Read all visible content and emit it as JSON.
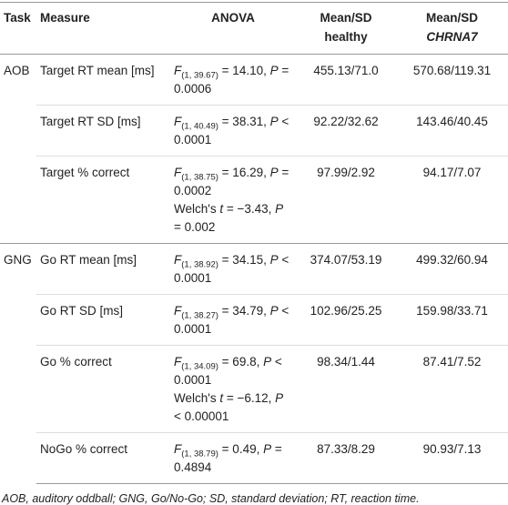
{
  "table": {
    "header": [
      [
        [
          "Task"
        ]
      ],
      [
        [
          "Measure"
        ]
      ],
      [
        [
          "ANOVA"
        ]
      ],
      [
        [
          "Mean/SD"
        ],
        [
          "healthy"
        ]
      ],
      [
        [
          "Mean/SD"
        ],
        [
          {
            "text": "CHRNA7",
            "style": "italic"
          }
        ]
      ]
    ],
    "groups": [
      {
        "task": "AOB",
        "rows": [
          {
            "measure": "Target RT mean [ms]",
            "anova": [
              [
                {
                  "text": "F",
                  "style": "italic"
                },
                {
                  "text": "(1, 39.67)",
                  "style": "sub"
                },
                " = 14.10, ",
                {
                  "text": "P",
                  "style": "italic"
                },
                " = 0.0006"
              ]
            ],
            "healthy": "455.13/71.0",
            "chrna7": "570.68/119.31"
          },
          {
            "measure": "Target RT SD [ms]",
            "anova": [
              [
                {
                  "text": "F",
                  "style": "italic"
                },
                {
                  "text": "(1, 40.49)",
                  "style": "sub"
                },
                " = 38.31, ",
                {
                  "text": "P",
                  "style": "italic"
                },
                " < 0.0001"
              ]
            ],
            "healthy": "92.22/32.62",
            "chrna7": "143.46/40.45"
          },
          {
            "measure": "Target % correct",
            "anova": [
              [
                {
                  "text": "F",
                  "style": "italic"
                },
                {
                  "text": "(1, 38.75)",
                  "style": "sub"
                },
                " = 16.29, ",
                {
                  "text": "P",
                  "style": "italic"
                },
                " = 0.0002"
              ],
              [
                "Welch's ",
                {
                  "text": "t",
                  "style": "italic"
                },
                " = −3.43, ",
                {
                  "text": "P",
                  "style": "italic"
                },
                " = 0.002"
              ]
            ],
            "healthy": "97.99/2.92",
            "chrna7": "94.17/7.07"
          }
        ]
      },
      {
        "task": "GNG",
        "rows": [
          {
            "measure": "Go RT mean [ms]",
            "anova": [
              [
                {
                  "text": "F",
                  "style": "italic"
                },
                {
                  "text": "(1, 38.92)",
                  "style": "sub"
                },
                " = 34.15, ",
                {
                  "text": "P",
                  "style": "italic"
                },
                " < 0.0001"
              ]
            ],
            "healthy": "374.07/53.19",
            "chrna7": "499.32/60.94"
          },
          {
            "measure": "Go RT SD [ms]",
            "anova": [
              [
                {
                  "text": "F",
                  "style": "italic"
                },
                {
                  "text": "(1, 38.27)",
                  "style": "sub"
                },
                " = 34.79, ",
                {
                  "text": "P",
                  "style": "italic"
                },
                " < 0.0001"
              ]
            ],
            "healthy": "102.96/25.25",
            "chrna7": "159.98/33.71"
          },
          {
            "measure": "Go % correct",
            "anova": [
              [
                {
                  "text": "F",
                  "style": "italic"
                },
                {
                  "text": "(1, 34.09)",
                  "style": "sub"
                },
                " = 69.8, ",
                {
                  "text": "P",
                  "style": "italic"
                },
                " < 0.0001"
              ],
              [
                "Welch's ",
                {
                  "text": "t",
                  "style": "italic"
                },
                " = −6.12, ",
                {
                  "text": "P",
                  "style": "italic"
                },
                " < 0.00001"
              ]
            ],
            "healthy": "98.34/1.44",
            "chrna7": "87.41/7.52"
          },
          {
            "measure": "NoGo % correct",
            "anova": [
              [
                {
                  "text": "F",
                  "style": "italic"
                },
                {
                  "text": "(1, 38.79)",
                  "style": "sub"
                },
                " = 0.49, ",
                {
                  "text": "P",
                  "style": "italic"
                },
                " = 0.4894"
              ]
            ],
            "healthy": "87.33/8.29",
            "chrna7": "90.93/7.13"
          }
        ]
      }
    ],
    "footnote": "AOB, auditory oddball; GNG, Go/No-Go; SD, standard deviation; RT, reaction time."
  }
}
